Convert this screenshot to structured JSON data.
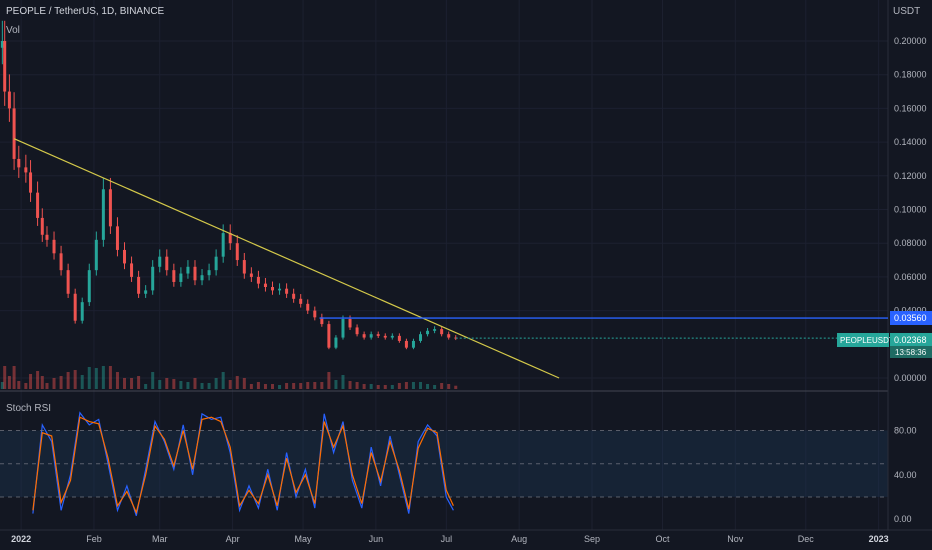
{
  "header": {
    "symbol_line": "PEOPLE / TetherUS, 1D, BINANCE",
    "vol_label": "Vol",
    "currency": "USDT",
    "stoch_label": "Stoch RSI"
  },
  "price_axis": {
    "ticks": [
      "0.20000",
      "0.18000",
      "0.16000",
      "0.14000",
      "0.12000",
      "0.10000",
      "0.08000",
      "0.06000",
      "0.04000",
      "0.00000"
    ],
    "tick_values": [
      0.2,
      0.18,
      0.16,
      0.14,
      0.12,
      0.1,
      0.08,
      0.06,
      0.04,
      0.0
    ]
  },
  "stoch_axis": {
    "ticks": [
      "80.00",
      "40.00",
      "0.00"
    ],
    "tick_values": [
      80,
      40,
      0
    ]
  },
  "time_axis": {
    "labels": [
      "2022",
      "Feb",
      "Mar",
      "Apr",
      "May",
      "Jun",
      "Jul",
      "Aug",
      "Sep",
      "Oct",
      "Nov",
      "Dec",
      "2023"
    ]
  },
  "price_tags": {
    "level_value": "0.03560",
    "ticker": "PEOPLEUSDT",
    "last_price": "0.02368",
    "countdown": "13:58:36"
  },
  "colors": {
    "background": "#131722",
    "up": "#26a69a",
    "down": "#ef5350",
    "trendline": "#d4c94a",
    "level": "#2962ff",
    "k_line": "#2962ff",
    "d_line": "#ff6d00",
    "ticker_bg": "#26a69a"
  },
  "chart_data": [
    {
      "type": "candlestick",
      "title": "PEOPLE / TetherUS, 1D, BINANCE",
      "ylim": [
        0,
        0.205
      ],
      "x_range": [
        "2021-12-23",
        "2023-01-05"
      ],
      "price_series": [
        {
          "date": "2021-12-24",
          "close": 0.2
        },
        {
          "date": "2021-12-25",
          "close": 0.17
        },
        {
          "date": "2021-12-27",
          "close": 0.16
        },
        {
          "date": "2021-12-29",
          "close": 0.13
        },
        {
          "date": "2021-12-31",
          "close": 0.125
        },
        {
          "date": "2022-01-03",
          "close": 0.122
        },
        {
          "date": "2022-01-05",
          "close": 0.11
        },
        {
          "date": "2022-01-08",
          "close": 0.095
        },
        {
          "date": "2022-01-10",
          "close": 0.085
        },
        {
          "date": "2022-01-12",
          "close": 0.082
        },
        {
          "date": "2022-01-15",
          "close": 0.074
        },
        {
          "date": "2022-01-18",
          "close": 0.064
        },
        {
          "date": "2022-01-21",
          "close": 0.05
        },
        {
          "date": "2022-01-24",
          "close": 0.034
        },
        {
          "date": "2022-01-27",
          "close": 0.045
        },
        {
          "date": "2022-01-30",
          "close": 0.064
        },
        {
          "date": "2022-02-02",
          "close": 0.082
        },
        {
          "date": "2022-02-05",
          "close": 0.112
        },
        {
          "date": "2022-02-08",
          "close": 0.09
        },
        {
          "date": "2022-02-11",
          "close": 0.076
        },
        {
          "date": "2022-02-14",
          "close": 0.068
        },
        {
          "date": "2022-02-17",
          "close": 0.06
        },
        {
          "date": "2022-02-20",
          "close": 0.05
        },
        {
          "date": "2022-02-23",
          "close": 0.052
        },
        {
          "date": "2022-02-26",
          "close": 0.066
        },
        {
          "date": "2022-03-01",
          "close": 0.072
        },
        {
          "date": "2022-03-04",
          "close": 0.064
        },
        {
          "date": "2022-03-07",
          "close": 0.057
        },
        {
          "date": "2022-03-10",
          "close": 0.062
        },
        {
          "date": "2022-03-13",
          "close": 0.066
        },
        {
          "date": "2022-03-16",
          "close": 0.058
        },
        {
          "date": "2022-03-19",
          "close": 0.061
        },
        {
          "date": "2022-03-22",
          "close": 0.064
        },
        {
          "date": "2022-03-25",
          "close": 0.072
        },
        {
          "date": "2022-03-28",
          "close": 0.086
        },
        {
          "date": "2022-03-31",
          "close": 0.08
        },
        {
          "date": "2022-04-03",
          "close": 0.07
        },
        {
          "date": "2022-04-06",
          "close": 0.062
        },
        {
          "date": "2022-04-09",
          "close": 0.06
        },
        {
          "date": "2022-04-12",
          "close": 0.056
        },
        {
          "date": "2022-04-15",
          "close": 0.054
        },
        {
          "date": "2022-04-18",
          "close": 0.052
        },
        {
          "date": "2022-04-21",
          "close": 0.053
        },
        {
          "date": "2022-04-24",
          "close": 0.05
        },
        {
          "date": "2022-04-27",
          "close": 0.047
        },
        {
          "date": "2022-04-30",
          "close": 0.044
        },
        {
          "date": "2022-05-03",
          "close": 0.04
        },
        {
          "date": "2022-05-06",
          "close": 0.036
        },
        {
          "date": "2022-05-09",
          "close": 0.032
        },
        {
          "date": "2022-05-12",
          "close": 0.018
        },
        {
          "date": "2022-05-15",
          "close": 0.024
        },
        {
          "date": "2022-05-18",
          "close": 0.035
        },
        {
          "date": "2022-05-21",
          "close": 0.03
        },
        {
          "date": "2022-05-24",
          "close": 0.026
        },
        {
          "date": "2022-05-27",
          "close": 0.024
        },
        {
          "date": "2022-05-30",
          "close": 0.026
        },
        {
          "date": "2022-06-02",
          "close": 0.025
        },
        {
          "date": "2022-06-05",
          "close": 0.024
        },
        {
          "date": "2022-06-08",
          "close": 0.025
        },
        {
          "date": "2022-06-11",
          "close": 0.022
        },
        {
          "date": "2022-06-14",
          "close": 0.018
        },
        {
          "date": "2022-06-17",
          "close": 0.022
        },
        {
          "date": "2022-06-20",
          "close": 0.026
        },
        {
          "date": "2022-06-23",
          "close": 0.028
        },
        {
          "date": "2022-06-26",
          "close": 0.029
        },
        {
          "date": "2022-06-29",
          "close": 0.026
        },
        {
          "date": "2022-07-02",
          "close": 0.024
        },
        {
          "date": "2022-07-05",
          "close": 0.0237
        }
      ],
      "trendline": [
        {
          "date": "2021-12-29",
          "price": 0.142
        },
        {
          "date": "2022-08-18",
          "price": 0.0
        }
      ],
      "horizontal_level": {
        "from": "2022-05-08",
        "price": 0.0356
      },
      "last_price": 0.02368
    },
    {
      "type": "line",
      "title": "Stoch RSI",
      "ylim": [
        -8,
        112
      ],
      "x_range": [
        "2021-12-23",
        "2023-01-05"
      ],
      "reference_levels": [
        80,
        50,
        20
      ],
      "k_series": [
        {
          "date": "2022-01-06",
          "value": 5
        },
        {
          "date": "2022-01-10",
          "value": 85
        },
        {
          "date": "2022-01-14",
          "value": 70
        },
        {
          "date": "2022-01-18",
          "value": 8
        },
        {
          "date": "2022-01-22",
          "value": 40
        },
        {
          "date": "2022-01-26",
          "value": 96
        },
        {
          "date": "2022-01-30",
          "value": 85
        },
        {
          "date": "2022-02-03",
          "value": 90
        },
        {
          "date": "2022-02-07",
          "value": 50
        },
        {
          "date": "2022-02-11",
          "value": 8
        },
        {
          "date": "2022-02-15",
          "value": 30
        },
        {
          "date": "2022-02-19",
          "value": 3
        },
        {
          "date": "2022-02-23",
          "value": 45
        },
        {
          "date": "2022-02-27",
          "value": 88
        },
        {
          "date": "2022-03-03",
          "value": 70
        },
        {
          "date": "2022-03-07",
          "value": 45
        },
        {
          "date": "2022-03-11",
          "value": 85
        },
        {
          "date": "2022-03-15",
          "value": 40
        },
        {
          "date": "2022-03-19",
          "value": 95
        },
        {
          "date": "2022-03-23",
          "value": 90
        },
        {
          "date": "2022-03-27",
          "value": 92
        },
        {
          "date": "2022-03-31",
          "value": 60
        },
        {
          "date": "2022-04-04",
          "value": 8
        },
        {
          "date": "2022-04-08",
          "value": 30
        },
        {
          "date": "2022-04-12",
          "value": 10
        },
        {
          "date": "2022-04-16",
          "value": 45
        },
        {
          "date": "2022-04-20",
          "value": 8
        },
        {
          "date": "2022-04-24",
          "value": 60
        },
        {
          "date": "2022-04-28",
          "value": 20
        },
        {
          "date": "2022-05-02",
          "value": 45
        },
        {
          "date": "2022-05-06",
          "value": 10
        },
        {
          "date": "2022-05-10",
          "value": 95
        },
        {
          "date": "2022-05-14",
          "value": 60
        },
        {
          "date": "2022-05-18",
          "value": 88
        },
        {
          "date": "2022-05-22",
          "value": 35
        },
        {
          "date": "2022-05-26",
          "value": 10
        },
        {
          "date": "2022-05-30",
          "value": 65
        },
        {
          "date": "2022-06-03",
          "value": 30
        },
        {
          "date": "2022-06-07",
          "value": 75
        },
        {
          "date": "2022-06-11",
          "value": 40
        },
        {
          "date": "2022-06-15",
          "value": 5
        },
        {
          "date": "2022-06-19",
          "value": 70
        },
        {
          "date": "2022-06-23",
          "value": 85
        },
        {
          "date": "2022-06-27",
          "value": 75
        },
        {
          "date": "2022-07-01",
          "value": 20
        },
        {
          "date": "2022-07-04",
          "value": 8
        }
      ],
      "d_series": [
        {
          "date": "2022-01-06",
          "value": 8
        },
        {
          "date": "2022-01-10",
          "value": 78
        },
        {
          "date": "2022-01-14",
          "value": 75
        },
        {
          "date": "2022-01-18",
          "value": 15
        },
        {
          "date": "2022-01-22",
          "value": 35
        },
        {
          "date": "2022-01-26",
          "value": 92
        },
        {
          "date": "2022-01-30",
          "value": 88
        },
        {
          "date": "2022-02-03",
          "value": 86
        },
        {
          "date": "2022-02-07",
          "value": 55
        },
        {
          "date": "2022-02-11",
          "value": 12
        },
        {
          "date": "2022-02-15",
          "value": 25
        },
        {
          "date": "2022-02-19",
          "value": 6
        },
        {
          "date": "2022-02-23",
          "value": 40
        },
        {
          "date": "2022-02-27",
          "value": 84
        },
        {
          "date": "2022-03-03",
          "value": 72
        },
        {
          "date": "2022-03-07",
          "value": 48
        },
        {
          "date": "2022-03-11",
          "value": 80
        },
        {
          "date": "2022-03-15",
          "value": 45
        },
        {
          "date": "2022-03-19",
          "value": 90
        },
        {
          "date": "2022-03-23",
          "value": 92
        },
        {
          "date": "2022-03-27",
          "value": 88
        },
        {
          "date": "2022-03-31",
          "value": 65
        },
        {
          "date": "2022-04-04",
          "value": 12
        },
        {
          "date": "2022-04-08",
          "value": 26
        },
        {
          "date": "2022-04-12",
          "value": 14
        },
        {
          "date": "2022-04-16",
          "value": 40
        },
        {
          "date": "2022-04-20",
          "value": 12
        },
        {
          "date": "2022-04-24",
          "value": 55
        },
        {
          "date": "2022-04-28",
          "value": 24
        },
        {
          "date": "2022-05-02",
          "value": 40
        },
        {
          "date": "2022-05-06",
          "value": 14
        },
        {
          "date": "2022-05-10",
          "value": 88
        },
        {
          "date": "2022-05-14",
          "value": 65
        },
        {
          "date": "2022-05-18",
          "value": 84
        },
        {
          "date": "2022-05-22",
          "value": 40
        },
        {
          "date": "2022-05-26",
          "value": 14
        },
        {
          "date": "2022-05-30",
          "value": 60
        },
        {
          "date": "2022-06-03",
          "value": 34
        },
        {
          "date": "2022-06-07",
          "value": 70
        },
        {
          "date": "2022-06-11",
          "value": 44
        },
        {
          "date": "2022-06-15",
          "value": 9
        },
        {
          "date": "2022-06-19",
          "value": 64
        },
        {
          "date": "2022-06-23",
          "value": 82
        },
        {
          "date": "2022-06-27",
          "value": 78
        },
        {
          "date": "2022-07-01",
          "value": 26
        },
        {
          "date": "2022-07-04",
          "value": 12
        }
      ]
    }
  ]
}
